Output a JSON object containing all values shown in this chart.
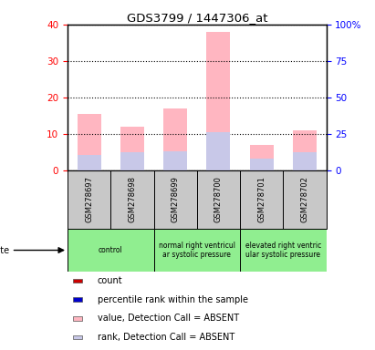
{
  "title": "GDS3799 / 1447306_at",
  "samples": [
    "GSM278697",
    "GSM278698",
    "GSM278699",
    "GSM278700",
    "GSM278701",
    "GSM278702"
  ],
  "value_absent": [
    15.5,
    12.0,
    17.0,
    38.0,
    7.0,
    10.8
  ],
  "rank_absent": [
    4.2,
    4.8,
    5.2,
    10.5,
    3.2,
    4.8
  ],
  "ylim_left": [
    0,
    40
  ],
  "ylim_right": [
    0,
    100
  ],
  "yticks_left": [
    0,
    10,
    20,
    30,
    40
  ],
  "yticks_right": [
    0,
    25,
    50,
    75,
    100
  ],
  "ytick_labels_right": [
    "0",
    "25",
    "50",
    "75",
    "100%"
  ],
  "group_starts": [
    0,
    2,
    4
  ],
  "group_ends": [
    2,
    4,
    6
  ],
  "group_labels": [
    "control",
    "normal right ventricul\nar systolic pressure",
    "elevated right ventric\nular systolic pressure"
  ],
  "group_color": "#90EE90",
  "legend_items": [
    {
      "color": "#CC0000",
      "label": "count"
    },
    {
      "color": "#0000CC",
      "label": "percentile rank within the sample"
    },
    {
      "color": "#FFB6C1",
      "label": "value, Detection Call = ABSENT"
    },
    {
      "color": "#C8C8E8",
      "label": "rank, Detection Call = ABSENT"
    }
  ],
  "bar_width": 0.55,
  "pink_color": "#FFB6C1",
  "lavender_color": "#C8C8E8",
  "bg_color": "#C8C8C8",
  "plot_bg": "#FFFFFF"
}
